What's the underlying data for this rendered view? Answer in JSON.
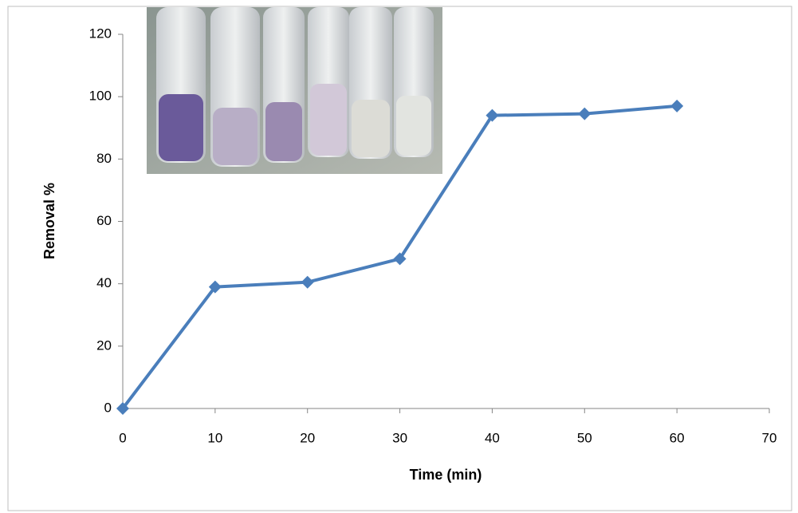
{
  "chart_data": {
    "type": "line",
    "x_label": "Time (min)",
    "y_label": "Removal %",
    "x": [
      0,
      10,
      20,
      30,
      40,
      50,
      60
    ],
    "series": [
      {
        "color": "#4a7ebb",
        "values": [
          0,
          39,
          40.5,
          48,
          94,
          94.5,
          97
        ]
      }
    ],
    "xlim": [
      0,
      70
    ],
    "xticks": [
      0,
      10,
      20,
      30,
      40,
      50,
      60,
      70
    ],
    "ylim": [
      0,
      120
    ],
    "yticks": [
      0,
      20,
      40,
      60,
      80,
      100,
      120
    ],
    "grid": false
  }
}
